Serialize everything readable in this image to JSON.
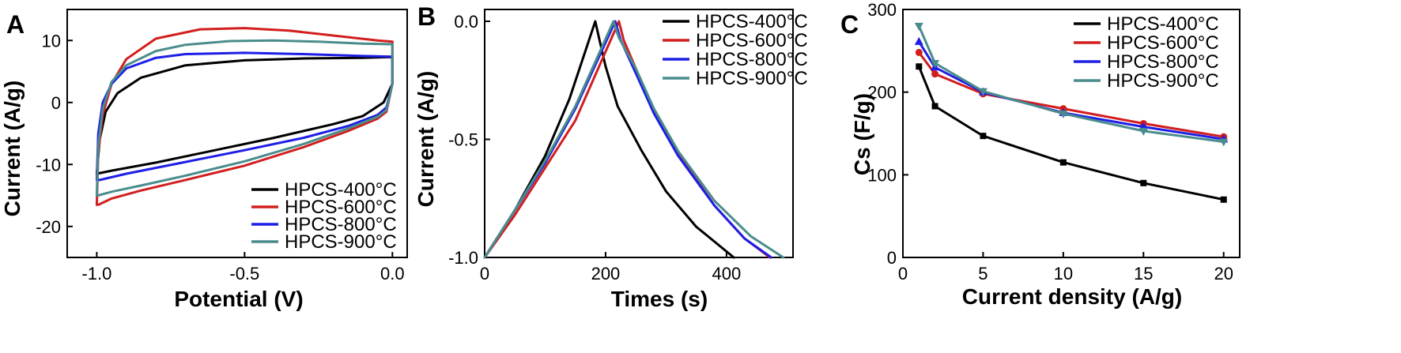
{
  "chart_data": [
    {
      "panel": "A",
      "type": "line",
      "title": "",
      "xlabel": "Potential (V)",
      "ylabel": "Current (A/g)",
      "xlim": [
        -1.1,
        0.05
      ],
      "ylim": [
        -25,
        15
      ],
      "xticks": [
        -1.0,
        -0.5,
        0.0
      ],
      "xtick_labels": [
        "-1.0",
        "-0.5",
        "0.0"
      ],
      "yticks": [
        -20,
        -10,
        0,
        10
      ],
      "ytick_labels": [
        "-20",
        "-10",
        "0",
        "10"
      ],
      "legend_position": "bottom-right",
      "series": [
        {
          "name": "HPCS-400°C",
          "color": "#000000",
          "x": [
            -1.0,
            -0.99,
            -0.97,
            -0.93,
            -0.85,
            -0.7,
            -0.5,
            -0.3,
            -0.1,
            -0.02,
            0.0,
            0.0,
            -0.03,
            -0.1,
            -0.2,
            -0.4,
            -0.6,
            -0.8,
            -0.95,
            -1.0,
            -1.0
          ],
          "y": [
            -11.5,
            -6,
            -1.5,
            1.5,
            4,
            6,
            6.8,
            7.1,
            7.2,
            7.3,
            7.3,
            3,
            0,
            -2.2,
            -3.5,
            -5.7,
            -7.7,
            -9.7,
            -11,
            -11.5,
            -11.5
          ]
        },
        {
          "name": "HPCS-600°C",
          "color": "#d21e1e",
          "x": [
            -1.0,
            -0.995,
            -0.98,
            -0.95,
            -0.9,
            -0.8,
            -0.65,
            -0.5,
            -0.35,
            -0.2,
            -0.05,
            0.0,
            0.0,
            -0.02,
            -0.05,
            -0.15,
            -0.3,
            -0.5,
            -0.7,
            -0.85,
            -0.95,
            -0.995,
            -1.0
          ],
          "y": [
            -16.5,
            -8,
            -2,
            3,
            7,
            10.3,
            11.8,
            12,
            11.6,
            10.8,
            10,
            9.8,
            3,
            -1.5,
            -2.6,
            -4.6,
            -7.2,
            -10.2,
            -12.5,
            -14.2,
            -15.5,
            -16.5,
            -16.5
          ]
        },
        {
          "name": "HPCS-800°C",
          "color": "#1e1ee6",
          "x": [
            -1.0,
            -0.995,
            -0.98,
            -0.95,
            -0.9,
            -0.8,
            -0.7,
            -0.5,
            -0.3,
            -0.1,
            0.0,
            0.0,
            -0.02,
            -0.05,
            -0.15,
            -0.3,
            -0.5,
            -0.7,
            -0.9,
            -0.99,
            -1.0
          ],
          "y": [
            -12.5,
            -5,
            0,
            3,
            5.5,
            7.2,
            7.8,
            8,
            7.8,
            7.5,
            7.4,
            3,
            -0.8,
            -2,
            -3.8,
            -5.7,
            -7.7,
            -9.6,
            -11.5,
            -12.5,
            -12.5
          ]
        },
        {
          "name": "HPCS-900°C",
          "color": "#4a8c8c",
          "x": [
            -1.0,
            -0.995,
            -0.98,
            -0.95,
            -0.9,
            -0.8,
            -0.7,
            -0.55,
            -0.4,
            -0.25,
            -0.1,
            0.0,
            0.0,
            -0.02,
            -0.05,
            -0.15,
            -0.3,
            -0.5,
            -0.7,
            -0.85,
            -0.95,
            -0.995,
            -1.0
          ],
          "y": [
            -15,
            -7,
            -1,
            3.3,
            6,
            8.3,
            9.3,
            9.9,
            10,
            9.8,
            9.5,
            9.4,
            3,
            -1.2,
            -2.3,
            -4.2,
            -6.7,
            -9.5,
            -11.8,
            -13.4,
            -14.4,
            -15,
            -15
          ]
        }
      ]
    },
    {
      "panel": "B",
      "type": "line",
      "title": "",
      "xlabel": "Times (s)",
      "ylabel": "Current (A/g)",
      "xlim": [
        0,
        510
      ],
      "ylim": [
        -1.0,
        0.05
      ],
      "xticks": [
        0,
        200,
        400
      ],
      "xtick_labels": [
        "0",
        "200",
        "400"
      ],
      "yticks": [
        -1.0,
        -0.5,
        0.0
      ],
      "ytick_labels": [
        "-1.0",
        "-0.5",
        "0.0"
      ],
      "legend_position": "top-right",
      "series": [
        {
          "name": "HPCS-400°C",
          "color": "#000000",
          "x": [
            0,
            50,
            100,
            140,
            183,
            190,
            200,
            220,
            260,
            300,
            350,
            412
          ],
          "y": [
            -1.0,
            -0.8,
            -0.57,
            -0.33,
            0.0,
            -0.08,
            -0.19,
            -0.36,
            -0.55,
            -0.72,
            -0.87,
            -1.0
          ]
        },
        {
          "name": "HPCS-600°C",
          "color": "#d21e1e",
          "x": [
            0,
            50,
            100,
            150,
            222,
            230,
            250,
            280,
            320,
            380,
            430,
            472
          ],
          "y": [
            -1.0,
            -0.82,
            -0.62,
            -0.42,
            0.0,
            -0.08,
            -0.2,
            -0.38,
            -0.56,
            -0.78,
            -0.92,
            -1.0
          ]
        },
        {
          "name": "HPCS-800°C",
          "color": "#1e1ee6",
          "x": [
            0,
            50,
            100,
            150,
            216,
            225,
            250,
            280,
            320,
            380,
            430,
            474
          ],
          "y": [
            -1.0,
            -0.8,
            -0.6,
            -0.37,
            0.0,
            -0.08,
            -0.22,
            -0.39,
            -0.57,
            -0.78,
            -0.92,
            -1.0
          ]
        },
        {
          "name": "HPCS-900°C",
          "color": "#4a8c8c",
          "x": [
            0,
            50,
            100,
            150,
            213,
            222,
            250,
            280,
            320,
            380,
            440,
            494
          ],
          "y": [
            -1.0,
            -0.8,
            -0.59,
            -0.36,
            0.0,
            -0.07,
            -0.2,
            -0.37,
            -0.55,
            -0.76,
            -0.91,
            -1.0
          ]
        }
      ]
    },
    {
      "panel": "C",
      "type": "line",
      "title": "",
      "xlabel": "Current density (A/g)",
      "ylabel": "Cs (F/g)",
      "xlim": [
        0,
        21
      ],
      "ylim": [
        0,
        300
      ],
      "xticks": [
        0,
        5,
        10,
        15,
        20
      ],
      "xtick_labels": [
        "0",
        "5",
        "10",
        "15",
        "20"
      ],
      "yticks": [
        0,
        100,
        200,
        300
      ],
      "ytick_labels": [
        "0",
        "100",
        "200",
        "300"
      ],
      "legend_position": "top-right",
      "series": [
        {
          "name": "HPCS-400°C",
          "color": "#000000",
          "marker": "square",
          "x": [
            1,
            2,
            5,
            10,
            15,
            20
          ],
          "y": [
            231,
            183,
            147,
            115,
            90,
            70
          ]
        },
        {
          "name": "HPCS-600°C",
          "color": "#d21e1e",
          "marker": "circle",
          "x": [
            1,
            2,
            5,
            10,
            15,
            20
          ],
          "y": [
            248,
            222,
            198,
            180,
            162,
            146
          ]
        },
        {
          "name": "HPCS-800°C",
          "color": "#1e1ee6",
          "marker": "triangle-up",
          "x": [
            1,
            2,
            5,
            10,
            15,
            20
          ],
          "y": [
            261,
            230,
            200,
            175,
            158,
            143
          ]
        },
        {
          "name": "HPCS-900°C",
          "color": "#4a8c8c",
          "marker": "triangle-down",
          "x": [
            1,
            2,
            5,
            10,
            15,
            20
          ],
          "y": [
            280,
            235,
            201,
            174,
            153,
            140
          ]
        }
      ]
    }
  ]
}
